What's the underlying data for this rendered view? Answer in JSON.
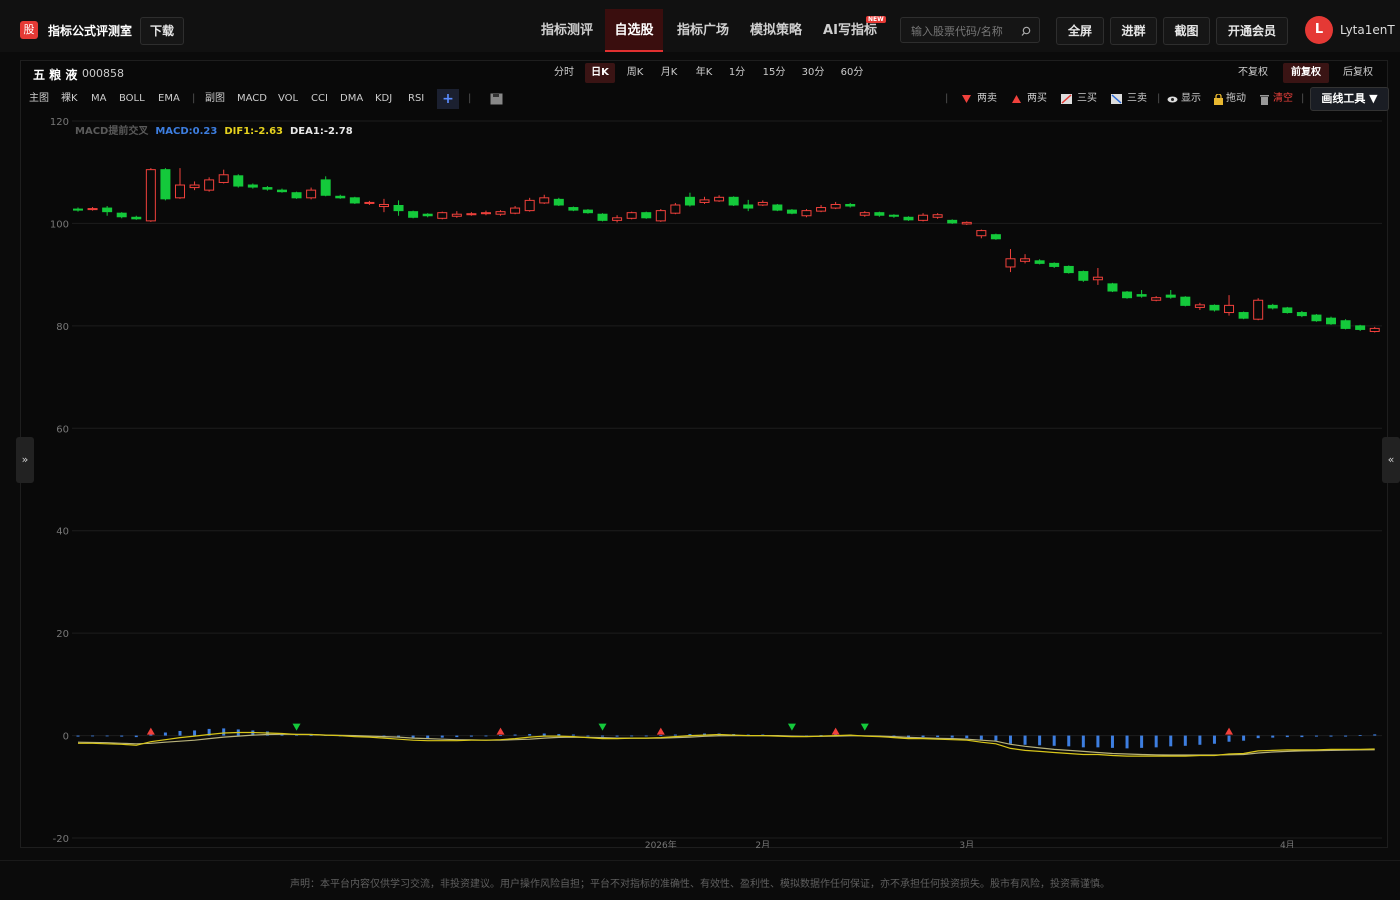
{
  "header": {
    "logo": "股",
    "brand": "指标公式评测室",
    "download": "下载",
    "nav": [
      "指标测评",
      "自选股",
      "指标广场",
      "模拟策略",
      "AI写指标"
    ],
    "badge": "NEW",
    "search": "输入股票代码/名称",
    "buttons": [
      "全屏",
      "进群",
      "截图",
      "开通会员"
    ],
    "avatar": "L",
    "user": "Lyta1enT"
  },
  "stock": {
    "name": "五 粮 液",
    "code": "000858",
    "periods": [
      "分时",
      "日K",
      "周K",
      "月K",
      "年K",
      "1分",
      "15分",
      "30分",
      "60分"
    ],
    "adjust": [
      "不复权",
      "前复权",
      "后复权"
    ]
  },
  "toolbar": {
    "main": [
      "主图",
      "裸K",
      "MA",
      "BOLL",
      "EMA"
    ],
    "sub": [
      "副图",
      "MACD",
      "VOL",
      "CCI",
      "DMA",
      "KDJ",
      "RSI"
    ],
    "add": "+",
    "draw": [
      "两卖",
      "两买",
      "三买",
      "三卖",
      "显示",
      "拖动",
      "清空"
    ],
    "draw_tool": "画线工具 ▼"
  },
  "side": {
    "left": "»",
    "right": "«"
  },
  "chart_data": {
    "type": "candlestick",
    "categories": [
      null,
      null,
      null,
      null,
      null,
      null,
      null,
      null,
      null,
      null,
      null,
      null,
      null,
      null,
      null,
      null,
      null,
      null,
      null,
      null,
      null,
      null,
      null,
      null,
      null,
      null,
      null,
      null,
      null,
      null,
      null,
      null,
      null,
      null,
      null,
      null,
      null,
      null,
      null,
      null,
      "2026年",
      null,
      null,
      null,
      null,
      null,
      null,
      "2月",
      null,
      null,
      null,
      null,
      null,
      null,
      null,
      null,
      null,
      null,
      null,
      null,
      null,
      "3月",
      null,
      null,
      null,
      null,
      null,
      null,
      null,
      null,
      null,
      null,
      null,
      null,
      null,
      null,
      null,
      null,
      null,
      null,
      null,
      null,
      null,
      "4月",
      null,
      null,
      null,
      null,
      null,
      null
    ],
    "open": [
      102.8,
      102.7,
      103,
      102,
      101.2,
      100.5,
      110.5,
      105,
      107,
      106.5,
      108,
      109.3,
      107.5,
      107,
      106.5,
      106,
      105,
      108.5,
      105.3,
      105,
      103.9,
      103.3,
      103.5,
      102.3,
      101.8,
      101,
      101.4,
      101.7,
      101.9,
      101.8,
      102,
      102.5,
      104,
      104.7,
      103.1,
      102.6,
      101.8,
      100.6,
      101,
      102.1,
      100.5,
      102,
      105.1,
      104.1,
      104.4,
      105.1,
      103.6,
      103.6,
      103.6,
      102.6,
      101.5,
      102.4,
      103,
      103.7,
      101.6,
      102.1,
      101.6,
      101.2,
      100.6,
      101.2,
      100.6,
      99.9,
      97.6,
      97.8,
      91.5,
      92.6,
      92.7,
      92.2,
      91.6,
      90.6,
      89,
      88.2,
      86.6,
      86.1,
      85,
      86,
      85.6,
      83.6,
      84,
      82.6,
      82.6,
      81.3,
      84,
      83.5,
      82.6,
      82.1,
      81.5,
      81,
      80,
      78.9
    ],
    "high": [
      103.1,
      103.2,
      103.4,
      102.2,
      101.5,
      110.8,
      110.8,
      110.8,
      108.2,
      109,
      110.5,
      109.6,
      107.8,
      107.3,
      106.8,
      106.2,
      107,
      109.2,
      105.6,
      105.2,
      104.4,
      104.8,
      104.5,
      102.5,
      102,
      102.3,
      102.4,
      102.2,
      102.5,
      102.6,
      103.4,
      105,
      105.6,
      105,
      103.3,
      102.8,
      102,
      101.6,
      102.3,
      102.3,
      102.8,
      104,
      106,
      105.2,
      105.5,
      105.3,
      104.6,
      104.5,
      103.8,
      102.8,
      102.8,
      103.6,
      104.2,
      104,
      102.4,
      102.3,
      101.8,
      101.4,
      102,
      102,
      100.8,
      100.4,
      98.8,
      98,
      95,
      94,
      93,
      92.4,
      91.8,
      90.8,
      91.3,
      88.4,
      86.8,
      87,
      85.8,
      87,
      85.8,
      84.5,
      84.2,
      86,
      82.8,
      85.4,
      84.3,
      83.7,
      82.9,
      82.3,
      81.8,
      81.3,
      80.2,
      79.8
    ],
    "low": [
      102.3,
      102.5,
      101.5,
      101,
      100.7,
      100.3,
      104.5,
      104.8,
      106.5,
      106.2,
      107.8,
      107,
      106.8,
      106.4,
      106,
      104.8,
      104.7,
      105.3,
      104.8,
      103.8,
      103.6,
      102.2,
      101.5,
      101,
      101.2,
      100.8,
      101.1,
      101.5,
      101.6,
      101.5,
      101.8,
      102.3,
      103.8,
      103.4,
      102.4,
      101.9,
      100.4,
      100.2,
      100.8,
      100.9,
      100.3,
      101.8,
      103.3,
      103.8,
      104.2,
      103.4,
      102.4,
      103.4,
      102.4,
      101.8,
      101.2,
      102.2,
      102.8,
      103.1,
      101.3,
      101.3,
      101.1,
      100.5,
      100.4,
      100.9,
      99.9,
      99.7,
      97.1,
      96.8,
      90.5,
      92.2,
      92,
      91.3,
      90.2,
      88.6,
      88,
      86.6,
      85.3,
      85.5,
      84.8,
      85.3,
      83.8,
      83.1,
      82.8,
      82,
      81.3,
      81.1,
      83.2,
      82.4,
      81.7,
      80.8,
      80.2,
      79.3,
      79,
      78.7
    ],
    "close": [
      102.6,
      102.9,
      102.3,
      101.3,
      100.9,
      110.5,
      104.8,
      107.5,
      107.5,
      108.5,
      109.5,
      107.3,
      107.1,
      106.7,
      106.2,
      105,
      106.5,
      105.5,
      105,
      104,
      104.1,
      103.7,
      102.5,
      101.2,
      101.5,
      102.1,
      101.8,
      101.9,
      102.1,
      102.3,
      103,
      104.5,
      105,
      103.6,
      102.6,
      102.1,
      100.6,
      101.1,
      102.1,
      101.1,
      102.5,
      103.6,
      103.6,
      104.6,
      105.1,
      103.6,
      103,
      104.1,
      102.6,
      102,
      102.5,
      103.1,
      103.7,
      103.4,
      102.1,
      101.6,
      101.4,
      100.7,
      101.6,
      101.7,
      100.1,
      100.2,
      98.6,
      97,
      93.1,
      93.1,
      92.2,
      91.6,
      90.4,
      88.9,
      89.5,
      86.8,
      85.5,
      85.8,
      85.5,
      85.6,
      84,
      84.1,
      83.1,
      84,
      81.5,
      85,
      83.5,
      82.6,
      82,
      81,
      80.4,
      79.5,
      79.3,
      79.5
    ],
    "up_color": "#f0413c",
    "down_color": "#14c93b",
    "macd": {
      "color": "#3d7ee0",
      "values": [
        -0.2,
        -0.1,
        -0.1,
        -0.2,
        -0.3,
        0.2,
        0.6,
        0.9,
        1.0,
        1.3,
        1.4,
        1.2,
        1.0,
        0.8,
        0.5,
        0.2,
        0.1,
        0.1,
        0,
        -0.1,
        -0.2,
        -0.3,
        -0.4,
        -0.5,
        -0.5,
        -0.4,
        -0.3,
        -0.2,
        -0.1,
        0.1,
        0.2,
        0.3,
        0.4,
        0.3,
        0.2,
        0,
        -0.2,
        -0.2,
        -0.1,
        -0.1,
        0.1,
        0.2,
        0.3,
        0.4,
        0.4,
        0.3,
        0.2,
        0.2,
        0.1,
        0,
        -0.1,
        0.1,
        0.2,
        0.2,
        0,
        -0.1,
        -0.2,
        -0.3,
        -0.3,
        -0.3,
        -0.4,
        -0.5,
        -0.8,
        -1.0,
        -1.6,
        -1.8,
        -1.9,
        -2.0,
        -2.1,
        -2.3,
        -2.3,
        -2.4,
        -2.5,
        -2.4,
        -2.3,
        -2.1,
        -2.0,
        -1.8,
        -1.6,
        -1.2,
        -1.0,
        -0.5,
        -0.4,
        -0.3,
        -0.3,
        -0.2,
        -0.2,
        -0.2,
        0.1,
        0.23
      ]
    },
    "dif": {
      "color": "#d8c619",
      "values": [
        -1.5,
        -1.5,
        -1.6,
        -1.7,
        -1.9,
        -1.2,
        -0.8,
        -0.4,
        -0.1,
        0.2,
        0.5,
        0.6,
        0.6,
        0.5,
        0.4,
        0.2,
        0.2,
        0.1,
        0,
        -0.2,
        -0.3,
        -0.5,
        -0.7,
        -0.9,
        -1.0,
        -1.0,
        -1.0,
        -0.9,
        -0.9,
        -0.8,
        -0.6,
        -0.3,
        -0.1,
        -0.1,
        -0.2,
        -0.4,
        -0.6,
        -0.6,
        -0.5,
        -0.5,
        -0.4,
        -0.2,
        0,
        0.1,
        0.2,
        0.1,
        0,
        0,
        -0.1,
        -0.2,
        -0.2,
        -0.1,
        0,
        0.1,
        -0.1,
        -0.2,
        -0.4,
        -0.6,
        -0.6,
        -0.7,
        -0.8,
        -0.9,
        -1.3,
        -1.6,
        -2.5,
        -2.9,
        -3.1,
        -3.3,
        -3.5,
        -3.7,
        -3.7,
        -3.9,
        -4.0,
        -4.0,
        -4.0,
        -4.0,
        -4.0,
        -3.9,
        -3.9,
        -3.6,
        -3.5,
        -3.0,
        -2.9,
        -2.8,
        -2.8,
        -2.8,
        -2.7,
        -2.7,
        -2.7,
        -2.63
      ]
    },
    "dea": {
      "color": "#b8b27a",
      "values": [
        -1.3,
        -1.35,
        -1.4,
        -1.5,
        -1.6,
        -1.5,
        -1.3,
        -1.1,
        -0.9,
        -0.6,
        -0.3,
        -0.1,
        0.1,
        0.2,
        0.25,
        0.25,
        0.2,
        0.1,
        0.05,
        0,
        -0.1,
        -0.2,
        -0.3,
        -0.5,
        -0.6,
        -0.7,
        -0.8,
        -0.85,
        -0.9,
        -0.9,
        -0.8,
        -0.7,
        -0.5,
        -0.35,
        -0.3,
        -0.35,
        -0.4,
        -0.5,
        -0.5,
        -0.5,
        -0.5,
        -0.4,
        -0.3,
        -0.15,
        -0.05,
        0,
        0,
        0,
        0,
        -0.1,
        -0.15,
        -0.15,
        -0.1,
        -0.05,
        -0.05,
        -0.1,
        -0.2,
        -0.35,
        -0.45,
        -0.55,
        -0.6,
        -0.7,
        -0.9,
        -1.1,
        -1.7,
        -2.1,
        -2.4,
        -2.7,
        -2.9,
        -3.1,
        -3.3,
        -3.5,
        -3.6,
        -3.7,
        -3.75,
        -3.8,
        -3.8,
        -3.8,
        -3.8,
        -3.75,
        -3.7,
        -3.4,
        -3.2,
        -3.1,
        -3.0,
        -2.95,
        -2.9,
        -2.85,
        -2.8,
        -2.78
      ]
    },
    "buy_marks": {
      "color": "#f0413c",
      "x": [
        5,
        29,
        40,
        52,
        79
      ]
    },
    "sell_marks": {
      "color": "#14c93b",
      "x": [
        15,
        36,
        49,
        54
      ]
    },
    "legend": [
      {
        "text": "MACD提前交叉",
        "color": "#5a5a5a"
      },
      {
        "text": "MACD:0.23",
        "color": "#3d7ee0"
      },
      {
        "text": "DIF1:-2.63",
        "color": "#e6d21e"
      },
      {
        "text": "DEA1:-2.78",
        "color": "#e8e8e8"
      }
    ],
    "ylim": [
      -20,
      120
    ],
    "yticks": [
      120,
      100,
      80,
      60,
      40,
      20,
      0,
      -20
    ],
    "grid": true
  },
  "footer": "声明：本平台内容仅供学习交流，非投资建议。用户操作风险自担；平台不对指标的准确性、有效性、盈利性、模拟数据作任何保证，亦不承担任何投资损失。股市有风险，投资需谨慎。"
}
